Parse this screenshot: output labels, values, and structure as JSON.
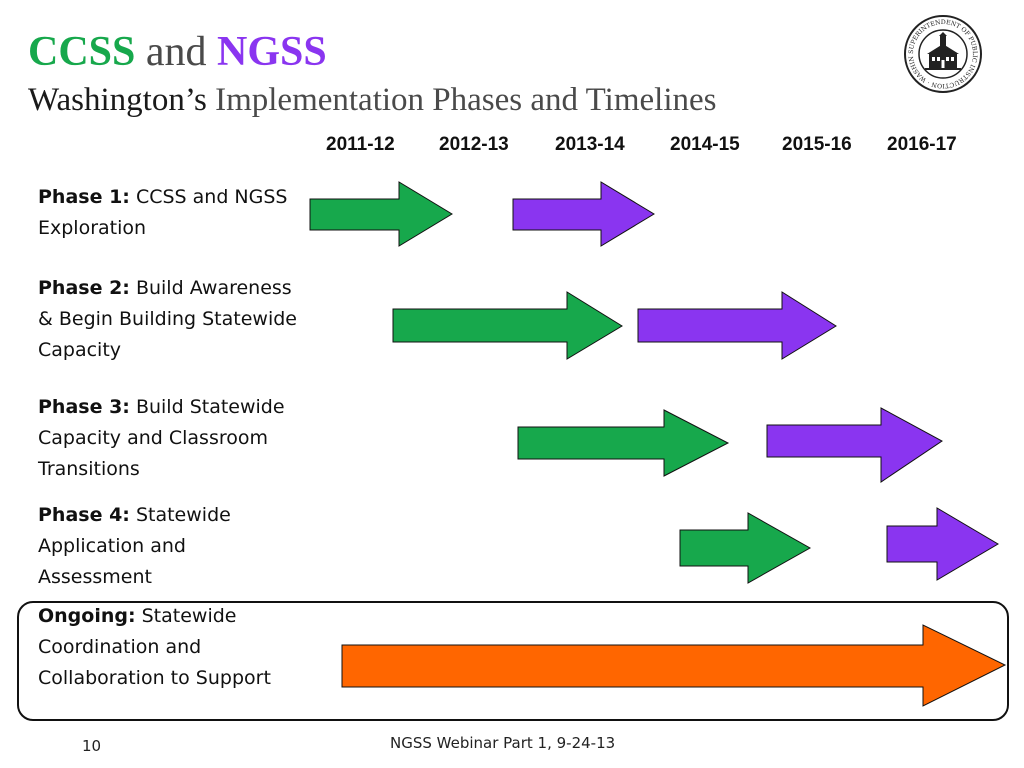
{
  "title": {
    "ccss": "CCSS",
    "and": "and",
    "ngss": "NGSS",
    "line2_prefix": "Washington’s",
    "line2_rest": "Implementation Phases and Timelines"
  },
  "seal": {
    "text": "SUPERINTENDENT OF PUBLIC INSTRUCTION · WASHINGTON STATE ·"
  },
  "years": [
    "2011-12",
    "2012-13",
    "2013-14",
    "2014-15",
    "2015-16",
    "2016-17"
  ],
  "phases": [
    {
      "bold": "Phase 1:",
      "text": "CCSS and NGSS Exploration"
    },
    {
      "bold": "Phase 2:",
      "text": "Build Awareness & Begin Building Statewide Capacity"
    },
    {
      "bold": "Phase 3:",
      "text": "Build Statewide Capacity and Classroom Transitions"
    },
    {
      "bold": "Phase 4:",
      "text": "Statewide Application and Assessment"
    },
    {
      "bold": "Ongoing:",
      "text": "Statewide Coordination and Collaboration to Support"
    }
  ],
  "colors": {
    "ccss_green": "#17a84c",
    "ngss_purple": "#8a35f0",
    "ongoing_orange": "#ff6600"
  },
  "footer": {
    "page_number": "10",
    "center_text": "NGSS Webinar Part 1, 9-24-13"
  }
}
